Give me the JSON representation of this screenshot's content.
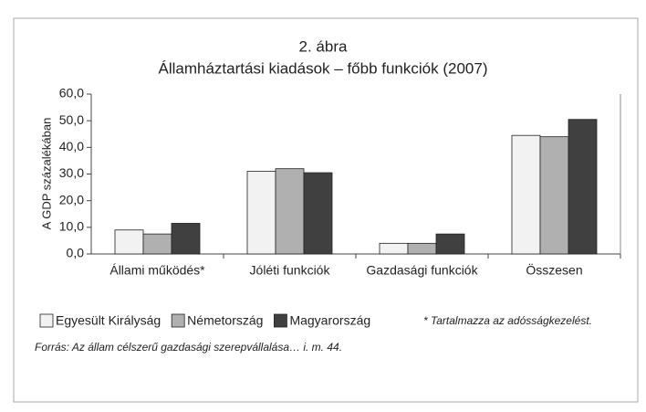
{
  "chart_data": {
    "type": "bar",
    "title": "2. ábra",
    "subtitle": "Államháztartási kiadások – főbb funkciók (2007)",
    "y_label": "A GDP százalékában",
    "categories": [
      "Állami működés*",
      "Jóléti funkciók",
      "Gazdasági funkciók",
      "Összesen"
    ],
    "series": [
      {
        "name": "Egyesült Királyság",
        "color": "#f2f2f2",
        "values": [
          9,
          31,
          4,
          44.5
        ]
      },
      {
        "name": "Németország",
        "color": "#b0b0b0",
        "values": [
          7.5,
          32,
          4,
          44
        ]
      },
      {
        "name": "Magyarország",
        "color": "#404040",
        "values": [
          11.5,
          30.5,
          7.5,
          50.5
        ]
      }
    ],
    "ylim": [
      0,
      60
    ],
    "yticks": [
      {
        "value": 0,
        "label": "0,0"
      },
      {
        "value": 10,
        "label": "10,0"
      },
      {
        "value": 20,
        "label": "20,0"
      },
      {
        "value": 30,
        "label": "30,0"
      },
      {
        "value": 40,
        "label": "40,0"
      },
      {
        "value": 50,
        "label": "50,0"
      },
      {
        "value": 60,
        "label": "60,0"
      }
    ],
    "grid": false,
    "footnote": "* Tartalmazza az adósságkezelést.",
    "source": "Forrás: Az állam célszerű gazdasági szerepvállalása… i. m. 44."
  }
}
